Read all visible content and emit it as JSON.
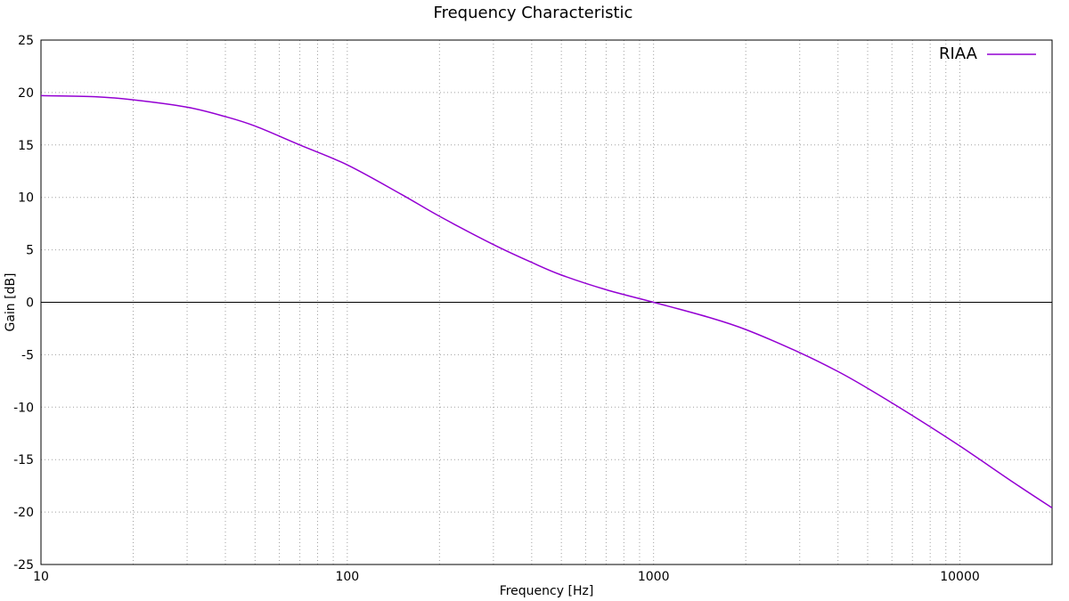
{
  "chart_data": {
    "type": "line",
    "title": "Frequency  Characteristic",
    "xlabel": "Frequency [Hz]",
    "ylabel": "Gain [dB]",
    "x_scale": "log",
    "xlim": [
      10,
      20000
    ],
    "ylim": [
      -25,
      25
    ],
    "x_ticks": [
      10,
      100,
      1000,
      10000
    ],
    "x_tick_labels": [
      "10",
      "100",
      "1000",
      "10000"
    ],
    "y_ticks": [
      -25,
      -20,
      -15,
      -10,
      -5,
      0,
      5,
      10,
      15,
      20,
      25
    ],
    "y_tick_labels": [
      "-25",
      "-20",
      "-15",
      "-10",
      "-5",
      "0",
      "5",
      "10",
      "15",
      "20",
      "25"
    ],
    "grid": true,
    "zero_line": true,
    "legend": {
      "position": "top-right"
    },
    "series": [
      {
        "name": "RIAA",
        "color": "#9400d3",
        "x": [
          10,
          15,
          20,
          30,
          40,
          50,
          70,
          100,
          150,
          200,
          300,
          400,
          500,
          700,
          1000,
          1500,
          2000,
          3000,
          4000,
          5000,
          7000,
          10000,
          15000,
          20000
        ],
        "y": [
          19.7,
          19.6,
          19.3,
          18.6,
          17.7,
          16.8,
          15.0,
          13.1,
          10.3,
          8.2,
          5.5,
          3.8,
          2.6,
          1.2,
          0.0,
          -1.4,
          -2.6,
          -4.8,
          -6.6,
          -8.2,
          -10.8,
          -13.7,
          -17.2,
          -19.6
        ]
      }
    ]
  }
}
